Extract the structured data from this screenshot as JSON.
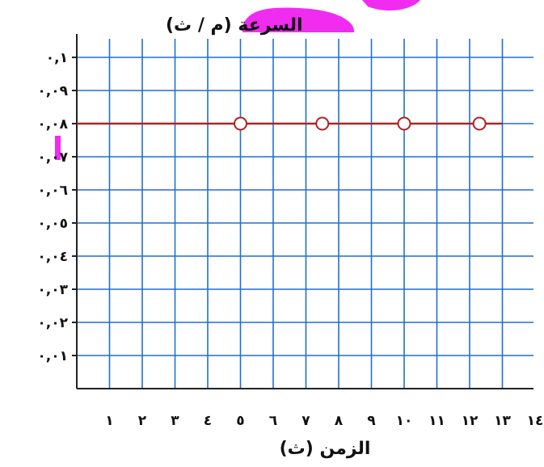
{
  "chart_data": {
    "type": "line",
    "ylabel": "السرعة (م / ث)",
    "xlabel": "الزمن (ث)",
    "xlim": [
      0,
      13
    ],
    "ylim": [
      0,
      0.1
    ],
    "grid": true,
    "x_ticks": [
      {
        "value": 1,
        "label": "١"
      },
      {
        "value": 2,
        "label": "٢"
      },
      {
        "value": 3,
        "label": "٣"
      },
      {
        "value": 4,
        "label": "٤"
      },
      {
        "value": 5,
        "label": "٥"
      },
      {
        "value": 6,
        "label": "٦"
      },
      {
        "value": 7,
        "label": "٧"
      },
      {
        "value": 8,
        "label": "٨"
      },
      {
        "value": 9,
        "label": "٩"
      },
      {
        "value": 10,
        "label": "١٠"
      },
      {
        "value": 11,
        "label": "١١"
      },
      {
        "value": 12,
        "label": "١٢"
      },
      {
        "value": 13,
        "label": "١٣"
      },
      {
        "value": 14,
        "label": "١٤"
      }
    ],
    "y_ticks": [
      {
        "value": 0.01,
        "label": "٠,٠١"
      },
      {
        "value": 0.02,
        "label": "٠,٠٢"
      },
      {
        "value": 0.03,
        "label": "٠,٠٣"
      },
      {
        "value": 0.04,
        "label": "٠,٠٤"
      },
      {
        "value": 0.05,
        "label": "٠,٠٥"
      },
      {
        "value": 0.06,
        "label": "٠,٠٦"
      },
      {
        "value": 0.07,
        "label": "٠,٠٧"
      },
      {
        "value": 0.08,
        "label": "٠,٠٨"
      },
      {
        "value": 0.09,
        "label": "٠,٠٩"
      },
      {
        "value": 0.1,
        "label": "٠,١"
      }
    ],
    "series": [
      {
        "color": "#b22222",
        "x": [
          0,
          13
        ],
        "y": [
          0.08,
          0.08
        ]
      }
    ],
    "markers": {
      "x": [
        5,
        7.5,
        10,
        12.3
      ],
      "y": [
        0.08,
        0.08,
        0.08,
        0.08
      ]
    },
    "colors": {
      "grid": "#1f6fd1",
      "axis": "#222222",
      "line": "#b22222",
      "highlight": "#f02cf0"
    }
  }
}
